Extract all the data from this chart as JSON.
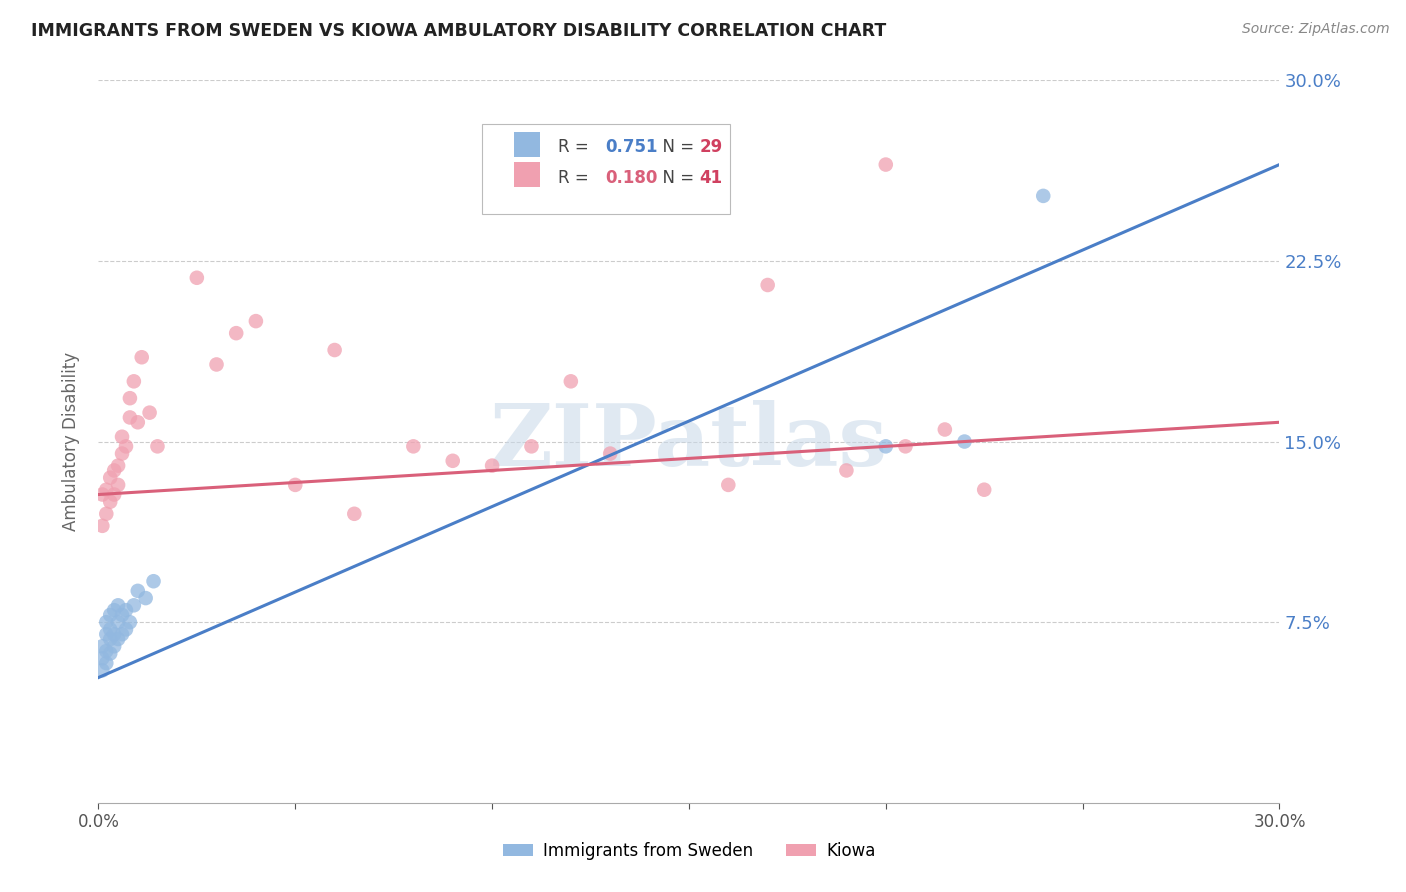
{
  "title": "IMMIGRANTS FROM SWEDEN VS KIOWA AMBULATORY DISABILITY CORRELATION CHART",
  "source": "Source: ZipAtlas.com",
  "ylabel": "Ambulatory Disability",
  "xlim": [
    0.0,
    0.3
  ],
  "ylim": [
    0.0,
    0.3
  ],
  "yticks": [
    0.075,
    0.15,
    0.225,
    0.3
  ],
  "ytick_labels": [
    "7.5%",
    "15.0%",
    "22.5%",
    "30.0%"
  ],
  "xtick_show": [
    0.0,
    0.3
  ],
  "xtick_labels_show": [
    "0.0%",
    "30.0%"
  ],
  "series1_name": "Immigrants from Sweden",
  "series1_R": 0.751,
  "series1_N": 29,
  "series1_color": "#92b8e0",
  "series1_trendline_color": "#4a7ec7",
  "series2_name": "Kiowa",
  "series2_R": 0.18,
  "series2_N": 41,
  "series2_color": "#f0a0b0",
  "series2_trendline_color": "#d9607a",
  "background_color": "#ffffff",
  "grid_color": "#cccccc",
  "title_color": "#222222",
  "axis_label_color": "#666666",
  "tick_color": "#4a7ec7",
  "blue_trend_x0": 0.0,
  "blue_trend_y0": 0.052,
  "blue_trend_x1": 0.3,
  "blue_trend_y1": 0.265,
  "pink_trend_x0": 0.0,
  "pink_trend_y0": 0.128,
  "pink_trend_x1": 0.3,
  "pink_trend_y1": 0.158,
  "series1_x": [
    0.001,
    0.001,
    0.001,
    0.002,
    0.002,
    0.002,
    0.002,
    0.003,
    0.003,
    0.003,
    0.003,
    0.004,
    0.004,
    0.004,
    0.005,
    0.005,
    0.005,
    0.006,
    0.006,
    0.007,
    0.007,
    0.008,
    0.009,
    0.01,
    0.012,
    0.014,
    0.2,
    0.22,
    0.24
  ],
  "series1_y": [
    0.055,
    0.06,
    0.065,
    0.058,
    0.063,
    0.07,
    0.075,
    0.062,
    0.068,
    0.072,
    0.078,
    0.065,
    0.07,
    0.08,
    0.068,
    0.075,
    0.082,
    0.07,
    0.078,
    0.072,
    0.08,
    0.075,
    0.082,
    0.088,
    0.085,
    0.092,
    0.148,
    0.15,
    0.252
  ],
  "series2_x": [
    0.001,
    0.001,
    0.002,
    0.002,
    0.003,
    0.003,
    0.004,
    0.004,
    0.005,
    0.005,
    0.006,
    0.006,
    0.007,
    0.008,
    0.008,
    0.009,
    0.01,
    0.011,
    0.013,
    0.015,
    0.05,
    0.065,
    0.09,
    0.11,
    0.13,
    0.145,
    0.16,
    0.17,
    0.19,
    0.205,
    0.215,
    0.225,
    0.06,
    0.08,
    0.1,
    0.12,
    0.04,
    0.025,
    0.03,
    0.035,
    0.2
  ],
  "series2_y": [
    0.115,
    0.128,
    0.12,
    0.13,
    0.125,
    0.135,
    0.128,
    0.138,
    0.132,
    0.14,
    0.145,
    0.152,
    0.148,
    0.16,
    0.168,
    0.175,
    0.158,
    0.185,
    0.162,
    0.148,
    0.132,
    0.12,
    0.142,
    0.148,
    0.145,
    0.25,
    0.132,
    0.215,
    0.138,
    0.148,
    0.155,
    0.13,
    0.188,
    0.148,
    0.14,
    0.175,
    0.2,
    0.218,
    0.182,
    0.195,
    0.265
  ]
}
